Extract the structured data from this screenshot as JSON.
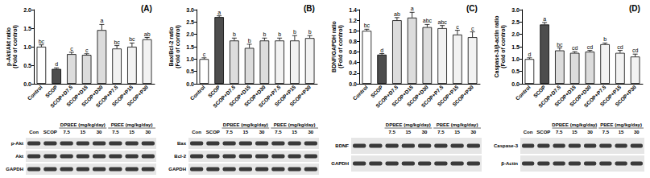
{
  "chart_data": [
    {
      "type": "bar",
      "title": "(A)",
      "ylabel": "p-Akt/Akt ratio\n(Fold of control)",
      "categories": [
        "Control",
        "SCOP",
        "SCOP+D7.5",
        "SCOP+D15",
        "SCOP+D30",
        "SCOP+P7.5",
        "SCOP+P15",
        "SCOP+P30"
      ],
      "values": [
        1.0,
        0.4,
        0.8,
        0.78,
        1.45,
        0.95,
        1.0,
        1.2
      ],
      "errors": [
        0.05,
        0.03,
        0.05,
        0.03,
        0.15,
        0.08,
        0.1,
        0.05
      ],
      "annotations": [
        "bc",
        "d",
        "c",
        "c",
        "a",
        "bc",
        "bc",
        "ab"
      ],
      "colors": [
        "#ffffff",
        "#4d4d4d",
        "#dcdcdc",
        "#dcdcdc",
        "#dcdcdc",
        "#f2f2f2",
        "#f2f2f2",
        "#f2f2f2"
      ],
      "ylim": [
        0,
        2.0
      ],
      "yticks": [
        {
          "value": 0,
          "label": "0.0"
        },
        {
          "value": 0.5,
          "label": "0.5"
        },
        {
          "value": 1.0,
          "label": "1.0"
        },
        {
          "value": 1.5,
          "label": "1.5"
        },
        {
          "value": 2.0,
          "label": "2.0"
        }
      ],
      "grid": false
    },
    {
      "type": "bar",
      "title": "(B)",
      "ylabel": "Bax/Bcl-2 ratio\n(Fold of control)",
      "categories": [
        "Control",
        "SCOP",
        "SCOP+D7.5",
        "SCOP+D15",
        "SCOP+D30",
        "SCOP+P7.5",
        "SCOP+P15",
        "SCOP+P30"
      ],
      "values": [
        1.0,
        2.7,
        1.75,
        1.45,
        1.75,
        1.75,
        1.75,
        1.85
      ],
      "errors": [
        0.05,
        0.05,
        0.1,
        0.15,
        0.1,
        0.1,
        0.2,
        0.1
      ],
      "annotations": [
        "c",
        "a",
        "b",
        "b",
        "b",
        "b",
        "b",
        "b"
      ],
      "colors": [
        "#ffffff",
        "#4d4d4d",
        "#dcdcdc",
        "#dcdcdc",
        "#dcdcdc",
        "#f2f2f2",
        "#f2f2f2",
        "#f2f2f2"
      ],
      "ylim": [
        0,
        3.0
      ],
      "yticks": [
        {
          "value": 0,
          "label": "0.0"
        },
        {
          "value": 0.5,
          "label": "0.5"
        },
        {
          "value": 1.0,
          "label": "1.0"
        },
        {
          "value": 1.5,
          "label": "1.5"
        },
        {
          "value": 2.0,
          "label": "2.0"
        },
        {
          "value": 2.5,
          "label": "2.5"
        },
        {
          "value": 3.0,
          "label": "3.0"
        }
      ],
      "grid": false
    },
    {
      "type": "bar",
      "title": "(C)",
      "ylabel": "BDNF/GAPDH ratio\n(Fold of control)",
      "categories": [
        "Control",
        "SCOP",
        "SCOP+D7.5",
        "SCOP+D15",
        "SCOP+D30",
        "SCOP+P7.5",
        "SCOP+P15",
        "SCOP+P30"
      ],
      "values": [
        1.0,
        0.55,
        1.2,
        1.25,
        1.07,
        1.05,
        0.93,
        0.88
      ],
      "errors": [
        0.03,
        0.02,
        0.05,
        0.1,
        0.05,
        0.05,
        0.08,
        0.1
      ],
      "annotations": [
        "bc",
        "d",
        "ab",
        "a",
        "abc",
        "abc",
        "c",
        "c"
      ],
      "colors": [
        "#ffffff",
        "#4d4d4d",
        "#dcdcdc",
        "#dcdcdc",
        "#dcdcdc",
        "#f2f2f2",
        "#f2f2f2",
        "#f2f2f2"
      ],
      "ylim": [
        0,
        1.4
      ],
      "yticks": [
        {
          "value": 0,
          "label": "0.0"
        },
        {
          "value": 0.2,
          "label": "0.2"
        },
        {
          "value": 0.4,
          "label": "0.4"
        },
        {
          "value": 0.6,
          "label": "0.6"
        },
        {
          "value": 0.8,
          "label": "0.8"
        },
        {
          "value": 1.0,
          "label": "1.0"
        },
        {
          "value": 1.2,
          "label": "1.2"
        },
        {
          "value": 1.4,
          "label": "1.4"
        }
      ],
      "grid": false
    },
    {
      "type": "bar",
      "title": "(D)",
      "ylabel": "Caspase-3/β-actin ratio\n(Fold of control)",
      "categories": [
        "Control",
        "SCOP",
        "SCOP+D7.5",
        "SCOP+D15",
        "SCOP+D30",
        "SCOP+P7.5",
        "SCOP+P15",
        "SCOP+P30"
      ],
      "values": [
        1.0,
        2.4,
        1.35,
        1.25,
        1.3,
        1.6,
        1.25,
        1.1
      ],
      "errors": [
        0.05,
        0.08,
        0.1,
        0.05,
        0.05,
        0.05,
        0.1,
        0.1
      ],
      "annotations": [
        "d",
        "a",
        "bc",
        "cd",
        "cd",
        "b",
        "cd",
        "cd"
      ],
      "colors": [
        "#ffffff",
        "#4d4d4d",
        "#dcdcdc",
        "#dcdcdc",
        "#dcdcdc",
        "#f2f2f2",
        "#f2f2f2",
        "#f2f2f2"
      ],
      "ylim": [
        0,
        3.0
      ],
      "yticks": [
        {
          "value": 0,
          "label": "0.0"
        },
        {
          "value": 0.5,
          "label": "0.5"
        },
        {
          "value": 1.0,
          "label": "1.0"
        },
        {
          "value": 1.5,
          "label": "1.5"
        },
        {
          "value": 2.0,
          "label": "2.0"
        },
        {
          "value": 2.5,
          "label": "2.5"
        },
        {
          "value": 3.0,
          "label": "3.0"
        }
      ],
      "grid": false
    }
  ],
  "blots": [
    {
      "control_lanes": [
        "Con",
        "SCOP"
      ],
      "groups": [
        "DPBEE (mg/kg/day)",
        "PBEE (mg/kg/day)"
      ],
      "doses": [
        "7.5",
        "15",
        "30"
      ],
      "rows": [
        "p-Akt",
        "Akt",
        "GAPDH"
      ]
    },
    {
      "control_lanes": [
        "Con",
        "SCOP"
      ],
      "groups": [
        "DPBEE (mg/kg/day)",
        "PBEE (mg/kg/day)"
      ],
      "doses": [
        "7.5",
        "15",
        "30"
      ],
      "rows": [
        "Bax",
        "Bcl-2",
        "GAPDH"
      ]
    },
    {
      "groups": [
        "DPBEE (mg/kg/day)",
        "PBEE (mg/kg/day)"
      ],
      "doses": [
        "7.5",
        "15",
        "30"
      ],
      "rows": [
        "BDNF",
        "GAPDH"
      ]
    },
    {
      "control_lanes": [
        "Con",
        "SCOP"
      ],
      "groups": [
        "DPBEE (mg/kg/day)",
        "PBEE (mg/kg/day)"
      ],
      "doses": [
        "7.5",
        "15",
        "30"
      ],
      "rows": [
        "Caspase-3",
        "β-Actin"
      ]
    }
  ]
}
